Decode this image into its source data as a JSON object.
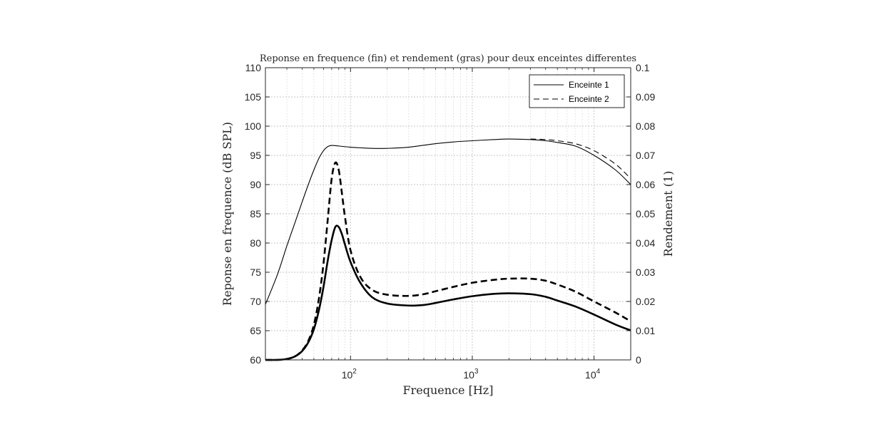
{
  "chart_data": {
    "type": "line",
    "title": "Reponse en frequence (fin) et rendement (gras) pour deux enceintes differentes",
    "xlabel": "Frequence [Hz]",
    "ylabel_left": "Reponse en frequence (dB SPL)",
    "ylabel_right": "Rendement (1)",
    "x_scale": "log",
    "xlim": [
      20,
      20000
    ],
    "ylim_left": [
      60,
      110
    ],
    "ylim_right": [
      0,
      0.1
    ],
    "x_ticks": [
      100,
      1000,
      10000
    ],
    "x_tick_labels": [
      {
        "base": "10",
        "exp": "2"
      },
      {
        "base": "10",
        "exp": "3"
      },
      {
        "base": "10",
        "exp": "4"
      }
    ],
    "y_left_ticks": [
      "60",
      "65",
      "70",
      "75",
      "80",
      "85",
      "90",
      "95",
      "100",
      "105",
      "110"
    ],
    "y_right_ticks": [
      "0",
      "0.01",
      "0.02",
      "0.03",
      "0.04",
      "0.05",
      "0.06",
      "0.07",
      "0.08",
      "0.09",
      "0.1"
    ],
    "grid": true,
    "legend": {
      "position": "top-right",
      "entries": [
        "Enceinte 1",
        "Enceinte 2"
      ]
    },
    "series": [
      {
        "name": "Enceinte 1",
        "axis": "left",
        "style": "solid",
        "weight": "thin",
        "x": [
          20,
          25,
          30,
          35,
          40,
          45,
          50,
          55,
          60,
          65,
          70,
          80,
          100,
          150,
          200,
          300,
          500,
          700,
          1000,
          1500,
          2000,
          3000,
          4000,
          5000,
          7000,
          10000,
          15000,
          20000
        ],
        "y": [
          69.5,
          74.5,
          79.5,
          83.5,
          87.0,
          90.0,
          92.5,
          94.5,
          95.8,
          96.5,
          96.7,
          96.6,
          96.4,
          96.2,
          96.2,
          96.4,
          97.0,
          97.3,
          97.5,
          97.7,
          97.8,
          97.7,
          97.5,
          97.2,
          96.6,
          95.0,
          92.5,
          90.0
        ]
      },
      {
        "name": "Enceinte 2",
        "axis": "left",
        "style": "dashed",
        "weight": "thin",
        "x": [
          3000,
          4000,
          5000,
          7000,
          10000,
          15000,
          20000
        ],
        "y": [
          97.8,
          97.7,
          97.5,
          97.0,
          95.8,
          93.5,
          91.0
        ]
      },
      {
        "name": "Enceinte 1",
        "axis": "right",
        "style": "solid",
        "weight": "bold",
        "x": [
          20,
          25,
          30,
          35,
          40,
          45,
          50,
          55,
          60,
          65,
          70,
          75,
          80,
          85,
          90,
          100,
          120,
          150,
          200,
          300,
          400,
          500,
          700,
          1000,
          1500,
          2000,
          3000,
          4000,
          5000,
          7000,
          10000,
          15000,
          20000
        ],
        "y": [
          0,
          0,
          0.0003,
          0.0012,
          0.003,
          0.006,
          0.0105,
          0.017,
          0.025,
          0.034,
          0.041,
          0.0455,
          0.0455,
          0.043,
          0.0395,
          0.0335,
          0.0265,
          0.0215,
          0.0193,
          0.0186,
          0.0188,
          0.0195,
          0.0207,
          0.0218,
          0.0226,
          0.0228,
          0.0225,
          0.0216,
          0.0203,
          0.0183,
          0.0155,
          0.0121,
          0.0101
        ]
      },
      {
        "name": "Enceinte 2",
        "axis": "right",
        "style": "dashed",
        "weight": "bold",
        "x": [
          20,
          25,
          30,
          35,
          40,
          45,
          50,
          55,
          60,
          65,
          70,
          75,
          80,
          85,
          90,
          100,
          120,
          150,
          200,
          300,
          400,
          500,
          700,
          1000,
          1500,
          2000,
          3000,
          4000,
          5000,
          7000,
          10000,
          15000,
          20000
        ],
        "y": [
          0,
          0,
          0.0003,
          0.0012,
          0.0032,
          0.0065,
          0.012,
          0.021,
          0.033,
          0.048,
          0.062,
          0.0675,
          0.065,
          0.057,
          0.049,
          0.0375,
          0.0285,
          0.024,
          0.0223,
          0.0219,
          0.0225,
          0.0235,
          0.025,
          0.0264,
          0.0274,
          0.0278,
          0.0278,
          0.0271,
          0.0258,
          0.0234,
          0.02,
          0.0162,
          0.0132
        ]
      }
    ]
  }
}
